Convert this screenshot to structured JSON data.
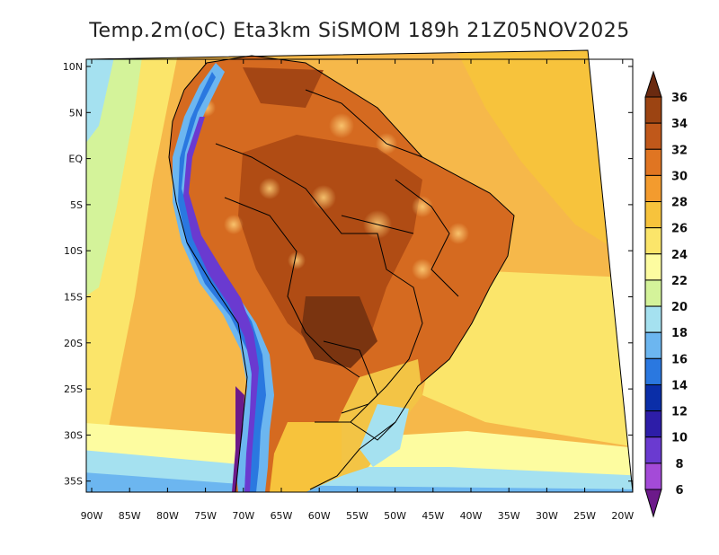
{
  "title": "Temp.2m(oC) Eta3km SiSMOM 189h 21Z05NOV2025",
  "map": {
    "lat_labels": [
      "10N",
      "5N",
      "EQ",
      "5S",
      "10S",
      "15S",
      "20S",
      "25S",
      "30S",
      "35S"
    ],
    "lon_labels": [
      "90W",
      "85W",
      "80W",
      "75W",
      "70W",
      "65W",
      "60W",
      "55W",
      "50W",
      "45W",
      "40W",
      "35W",
      "30W",
      "25W",
      "20W"
    ]
  },
  "colorbar": {
    "labels": [
      "36",
      "34",
      "32",
      "30",
      "28",
      "26",
      "24",
      "22",
      "20",
      "18",
      "16",
      "14",
      "12",
      "10",
      "8",
      "6"
    ],
    "colors": [
      "#6a2a10",
      "#9c4412",
      "#c0581a",
      "#e07522",
      "#f39b2e",
      "#f7c33c",
      "#fbe56a",
      "#fdfca0",
      "#d4f39a",
      "#a5e1f0",
      "#6cb6f0",
      "#2a78e0",
      "#0a2ea8",
      "#2d1da8",
      "#6a3ad0",
      "#a44ad8",
      "#6c1a8a"
    ]
  }
}
